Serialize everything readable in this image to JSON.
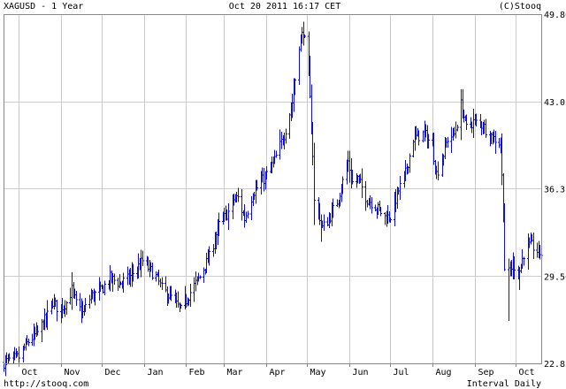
{
  "header": {
    "symbol_period": "XAGUSD - 1 Year",
    "timestamp": "Oct 20 2011 16:17 CET",
    "copyright": "(C)Stooq"
  },
  "footer": {
    "url": "http://stooq.com",
    "interval": "Interval Daily"
  },
  "chart_data": {
    "type": "ohlc",
    "ylim": [
      22.82,
      49.8
    ],
    "grid": true,
    "series_color": "#1010c8",
    "y_ticks": [
      22.82,
      29.56,
      36.31,
      43.05,
      49.8
    ],
    "x_ticks": [
      {
        "label": "Oct",
        "date": "2010-10-01"
      },
      {
        "label": "Nov",
        "date": "2010-11-01"
      },
      {
        "label": "Dec",
        "date": "2010-12-01"
      },
      {
        "label": "Jan",
        "date": "2011-01-01"
      },
      {
        "label": "Feb",
        "date": "2011-02-01"
      },
      {
        "label": "Mar",
        "date": "2011-03-01"
      },
      {
        "label": "Apr",
        "date": "2011-04-01"
      },
      {
        "label": "May",
        "date": "2011-05-01"
      },
      {
        "label": "Jun",
        "date": "2011-06-01"
      },
      {
        "label": "Jul",
        "date": "2011-07-01"
      },
      {
        "label": "Aug",
        "date": "2011-08-01"
      },
      {
        "label": "Sep",
        "date": "2011-09-01"
      },
      {
        "label": "Oct",
        "date": "2011-10-01"
      }
    ],
    "x_range": [
      "2010-09-20",
      "2011-10-20"
    ],
    "keypoints": [
      [
        "2010-09-20",
        22.9
      ],
      [
        "2010-10-01",
        23.3
      ],
      [
        "2010-10-08",
        24.5
      ],
      [
        "2010-10-15",
        25.2
      ],
      [
        "2010-10-22",
        26.5
      ],
      [
        "2010-10-26",
        27.6
      ],
      [
        "2010-10-30",
        27.0
      ],
      [
        "2010-11-05",
        27.5
      ],
      [
        "2010-11-09",
        28.5
      ],
      [
        "2010-11-12",
        27.4
      ],
      [
        "2010-11-17",
        26.7
      ],
      [
        "2010-11-23",
        28.0
      ],
      [
        "2010-11-30",
        28.4
      ],
      [
        "2010-12-07",
        29.4
      ],
      [
        "2010-12-14",
        29.0
      ],
      [
        "2010-12-20",
        29.3
      ],
      [
        "2010-12-31",
        30.7
      ],
      [
        "2011-01-04",
        30.2
      ],
      [
        "2011-01-10",
        29.5
      ],
      [
        "2011-01-14",
        28.6
      ],
      [
        "2011-01-21",
        27.9
      ],
      [
        "2011-01-28",
        26.9
      ],
      [
        "2011-02-04",
        28.3
      ],
      [
        "2011-02-11",
        29.5
      ],
      [
        "2011-02-18",
        31.0
      ],
      [
        "2011-02-25",
        33.5
      ],
      [
        "2011-03-04",
        34.5
      ],
      [
        "2011-03-08",
        35.5
      ],
      [
        "2011-03-11",
        35.6
      ],
      [
        "2011-03-16",
        34.0
      ],
      [
        "2011-03-22",
        36.0
      ],
      [
        "2011-03-31",
        37.2
      ],
      [
        "2011-04-07",
        38.5
      ],
      [
        "2011-04-14",
        40.5
      ],
      [
        "2011-04-20",
        43.0
      ],
      [
        "2011-04-25",
        47.5
      ],
      [
        "2011-04-28",
        48.5
      ],
      [
        "2011-05-02",
        45.2
      ],
      [
        "2011-05-05",
        39.0
      ],
      [
        "2011-05-06",
        35.3
      ],
      [
        "2011-05-09",
        34.6
      ],
      [
        "2011-05-12",
        33.3
      ],
      [
        "2011-05-17",
        34.0
      ],
      [
        "2011-05-23",
        35.3
      ],
      [
        "2011-05-31",
        38.4
      ],
      [
        "2011-06-03",
        36.8
      ],
      [
        "2011-06-07",
        37.1
      ],
      [
        "2011-06-14",
        35.5
      ],
      [
        "2011-06-20",
        35.0
      ],
      [
        "2011-06-27",
        34.1
      ],
      [
        "2011-07-01",
        34.2
      ],
      [
        "2011-07-07",
        36.2
      ],
      [
        "2011-07-12",
        37.5
      ],
      [
        "2011-07-18",
        40.2
      ],
      [
        "2011-07-26",
        40.6
      ],
      [
        "2011-08-01",
        39.5
      ],
      [
        "2011-08-04",
        37.5
      ],
      [
        "2011-08-09",
        39.0
      ],
      [
        "2011-08-12",
        40.2
      ],
      [
        "2011-08-17",
        40.5
      ],
      [
        "2011-08-22",
        42.8
      ],
      [
        "2011-08-26",
        41.0
      ],
      [
        "2011-08-31",
        41.5
      ],
      [
        "2011-09-07",
        41.2
      ],
      [
        "2011-09-14",
        40.3
      ],
      [
        "2011-09-20",
        39.8
      ],
      [
        "2011-09-21",
        37.2
      ],
      [
        "2011-09-22",
        34.8
      ],
      [
        "2011-09-23",
        30.2
      ],
      [
        "2011-09-26",
        29.8
      ],
      [
        "2011-09-29",
        30.5
      ],
      [
        "2011-10-04",
        30.0
      ],
      [
        "2011-10-07",
        31.3
      ],
      [
        "2011-10-12",
        32.0
      ],
      [
        "2011-10-17",
        31.5
      ],
      [
        "2011-10-20",
        31.3
      ]
    ],
    "spikes": [
      [
        "2011-09-26",
        26.1
      ],
      [
        "2011-10-04",
        28.5
      ],
      [
        "2011-05-11",
        32.2
      ],
      [
        "2011-05-06",
        33.5
      ]
    ]
  }
}
